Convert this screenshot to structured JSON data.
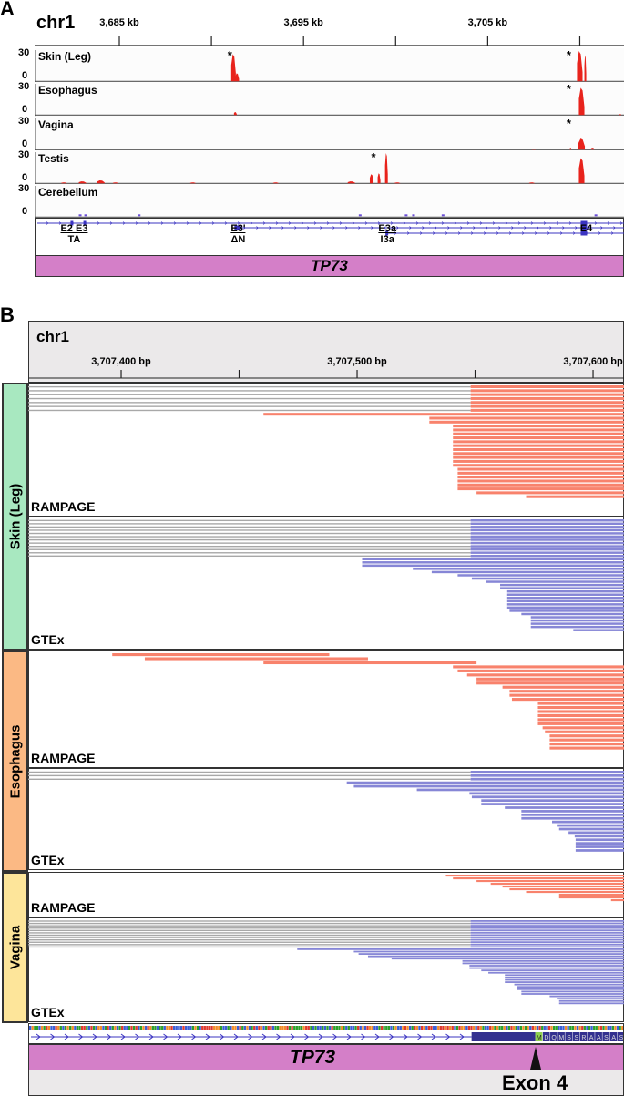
{
  "panel_a": {
    "label": "A",
    "chrom": "chr1",
    "kb_range": [
      3680.4,
      3712.4
    ],
    "ruler_ticks_kb": [
      3685,
      3690,
      3695,
      3700,
      3705,
      3710
    ],
    "ruler_labels": [
      {
        "kb": 3685,
        "text": "3,685 kb"
      },
      {
        "kb": 3695,
        "text": "3,695 kb"
      },
      {
        "kb": 3705,
        "text": "3,705 kb"
      }
    ],
    "y_max": "30",
    "y_min": "0",
    "coverage_color": "#e8231c",
    "tracks": [
      {
        "name": "Skin (Leg)",
        "peaks": [
          [
            3691.2,
            27,
            0.25
          ],
          [
            3691.4,
            8,
            0.2
          ],
          [
            3710.0,
            30,
            0.3
          ],
          [
            3710.3,
            26,
            0.1
          ]
        ],
        "asterisks_kb": [
          3691.0,
          3709.4
        ]
      },
      {
        "name": "Esophagus",
        "peaks": [
          [
            3691.3,
            3,
            0.15
          ],
          [
            3710.1,
            27,
            0.3
          ],
          [
            3712.2,
            1,
            0.1
          ]
        ],
        "asterisks_kb": [
          3709.4
        ]
      },
      {
        "name": "Vagina",
        "peaks": [
          [
            3707.5,
            1,
            0.2
          ],
          [
            3709.5,
            2,
            0.1
          ],
          [
            3710.1,
            11,
            0.35
          ],
          [
            3710.7,
            2,
            0.2
          ]
        ],
        "asterisks_kb": [
          3709.4
        ]
      },
      {
        "name": "Testis",
        "peaks": [
          [
            3682.0,
            1,
            0.3
          ],
          [
            3683.0,
            2,
            0.4
          ],
          [
            3684.0,
            3,
            0.4
          ],
          [
            3684.8,
            1,
            0.3
          ],
          [
            3689.0,
            1,
            0.3
          ],
          [
            3693.5,
            1,
            0.3
          ],
          [
            3697.6,
            2,
            0.4
          ],
          [
            3698.7,
            9,
            0.2
          ],
          [
            3699.1,
            10,
            0.15
          ],
          [
            3699.5,
            30,
            0.15
          ],
          [
            3700.1,
            1,
            0.3
          ],
          [
            3707.4,
            1,
            0.3
          ],
          [
            3710.1,
            25,
            0.3
          ]
        ],
        "asterisks_kb": [
          3698.8
        ]
      },
      {
        "name": "Cerebellum",
        "peaks": [],
        "asterisks_kb": []
      }
    ],
    "exon_labels": [
      {
        "kb": 3682.5,
        "top": "E2 E3",
        "bottom": "TA"
      },
      {
        "kb": 3691.4,
        "top": "E3'",
        "bottom": "ΔN"
      },
      {
        "kb": 3699.5,
        "top": "E3a",
        "bottom": "I3a"
      },
      {
        "kb": 3710.3,
        "top": "E4",
        "bottom": ""
      }
    ],
    "gene_color": "#3b34c2",
    "gene_name": "TP73",
    "gene_bar_color": "#d47fc8"
  },
  "panel_b": {
    "label": "B",
    "chrom": "chr1",
    "bp_range": [
      3707361,
      3707613.5
    ],
    "ruler_ticks_bp": [
      3707400,
      3707450,
      3707500,
      3707550,
      3707600
    ],
    "ruler_labels": [
      {
        "bp": 3707400,
        "text": "3,707,400 bp"
      },
      {
        "bp": 3707500,
        "text": "3,707,500 bp"
      },
      {
        "bp": 3707600,
        "text": "3,707,600 bp"
      }
    ],
    "splice_junction_bp": 3707548.5,
    "colors": {
      "rampage": "#f8826c",
      "gtex": "#8686d6",
      "spliced": "#a8a8a8"
    },
    "tissues": [
      {
        "name": "Skin (Leg)",
        "color": "#a8e8c0",
        "tracks": [
          {
            "name": "RAMPAGE",
            "type": "rampage",
            "spliced_rows": 7,
            "reads": [
              [
                3707460.7,
                3707613.5,
                1
              ],
              [
                3707531,
                3707613.5,
                2
              ],
              [
                3707541,
                3707613.5,
                11
              ],
              [
                3707543,
                3707613.5,
                6
              ],
              [
                3707551,
                3707613.5,
                1
              ],
              [
                3707572,
                3707613.5,
                1
              ]
            ]
          },
          {
            "name": "GTEx",
            "type": "gtex",
            "spliced_rows": 12,
            "reads": [
              [
                3707502.5,
                3707613.5,
                3
              ],
              [
                3707524,
                3707613.5,
                1
              ],
              [
                3707532,
                3707613.5,
                1
              ],
              [
                3707543,
                3707613.5,
                1
              ],
              [
                3707549,
                3707613.5,
                1
              ],
              [
                3707555,
                3707613.5,
                1
              ],
              [
                3707561,
                3707613.5,
                2
              ],
              [
                3707564,
                3707613.5,
                6
              ],
              [
                3707565,
                3707613.5,
                1
              ],
              [
                3707570,
                3707613.5,
                1
              ],
              [
                3707574,
                3707613.5,
                4
              ],
              [
                3707592,
                3707613.5,
                1
              ]
            ]
          }
        ]
      },
      {
        "name": "Esophagus",
        "color": "#fbb984",
        "tracks": [
          {
            "name": "RAMPAGE",
            "type": "rampage",
            "spliced_rows": 0,
            "reads": [
              [
                3707396.6,
                3707488.6,
                1
              ],
              [
                3707410.4,
                3707505,
                1
              ],
              [
                3707460.7,
                3707551,
                1
              ],
              [
                3707541,
                3707613.5,
                1
              ],
              [
                3707543,
                3707613.5,
                1
              ],
              [
                3707547,
                3707613.5,
                1
              ],
              [
                3707551,
                3707613.5,
                2
              ],
              [
                3707562,
                3707613.5,
                1
              ],
              [
                3707565,
                3707613.5,
                2
              ],
              [
                3707566,
                3707613.5,
                1
              ],
              [
                3707577,
                3707613.5,
                6
              ],
              [
                3707579,
                3707613.5,
                1
              ],
              [
                3707580,
                3707613.5,
                1
              ],
              [
                3707582,
                3707613.5,
                4
              ]
            ]
          },
          {
            "name": "GTEx",
            "type": "gtex",
            "spliced_rows": 3,
            "reads": [
              [
                3707496,
                3707613.5,
                1
              ],
              [
                3707499,
                3707613.5,
                1
              ],
              [
                3707525.7,
                3707613.5,
                1
              ],
              [
                3707548,
                3707613.5,
                1
              ],
              [
                3707549,
                3707613.5,
                1
              ],
              [
                3707553,
                3707613.5,
                2
              ],
              [
                3707563,
                3707613.5,
                1
              ],
              [
                3707570,
                3707613.5,
                3
              ],
              [
                3707583,
                3707613.5,
                1
              ],
              [
                3707585,
                3707613.5,
                1
              ],
              [
                3707586,
                3707613.5,
                1
              ],
              [
                3707590,
                3707613.5,
                1
              ],
              [
                3707592.6,
                3707613.5,
                1
              ],
              [
                3707593,
                3707613.5,
                4
              ]
            ]
          }
        ]
      },
      {
        "name": "Vagina",
        "color": "#fde59a",
        "tracks": [
          {
            "name": "RAMPAGE",
            "type": "rampage",
            "spliced_rows": 0,
            "reads": [
              [
                3707538,
                3707613.5,
                1
              ],
              [
                3707541,
                3707613.5,
                1
              ],
              [
                3707551,
                3707613.5,
                1
              ],
              [
                3707557,
                3707613.5,
                1
              ],
              [
                3707562,
                3707613.5,
                1
              ],
              [
                3707565,
                3707613.5,
                1
              ],
              [
                3707572,
                3707613.5,
                1
              ],
              [
                3707586,
                3707613.5,
                2
              ],
              [
                3707608,
                3707613.5,
                1
              ]
            ]
          },
          {
            "name": "GTEx",
            "type": "gtex",
            "spliced_rows": 12,
            "reads": [
              [
                3707475,
                3707613.5,
                1
              ],
              [
                3707499,
                3707613.5,
                1
              ],
              [
                3707501,
                3707613.5,
                1
              ],
              [
                3707505,
                3707613.5,
                1
              ],
              [
                3707515,
                3707613.5,
                1
              ],
              [
                3707545,
                3707613.5,
                2
              ],
              [
                3707548,
                3707613.5,
                2
              ],
              [
                3707553,
                3707613.5,
                1
              ],
              [
                3707556,
                3707613.5,
                1
              ],
              [
                3707563,
                3707613.5,
                4
              ],
              [
                3707567,
                3707613.5,
                1
              ],
              [
                3707568,
                3707613.5,
                2
              ],
              [
                3707570,
                3707613.5,
                2
              ],
              [
                3707582,
                3707613.5,
                1
              ],
              [
                3707585,
                3707613.5,
                1
              ],
              [
                3707586,
                3707613.5,
                2
              ]
            ]
          }
        ]
      }
    ],
    "amino_acids": [
      "M",
      "D",
      "Q",
      "M",
      "S",
      "S",
      "R",
      "A",
      "A",
      "S",
      "A",
      "S"
    ],
    "start_codon_color": "#8fd14f",
    "gene_name": "TP73",
    "gene_bar_color": "#d47fc8",
    "exon_label": "Exon 4"
  }
}
